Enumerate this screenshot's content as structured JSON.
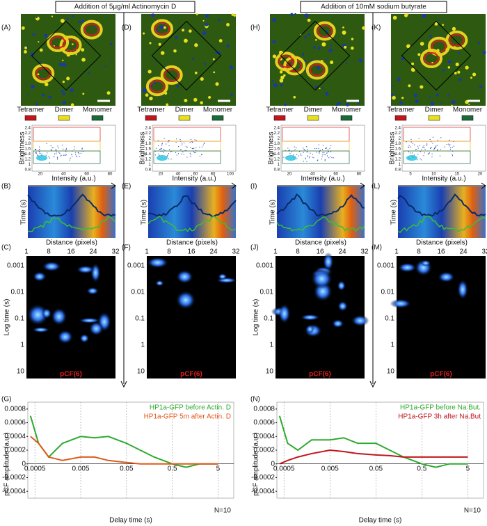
{
  "headers": [
    "Addition of 5μg/ml  Actinomycin D",
    "Addition of 10mM  sodium butyrate"
  ],
  "legend": [
    "Tetramer",
    "Dimer",
    "Monomer"
  ],
  "brightness_label": "Brightness",
  "brightness_yticks": [
    "2.4",
    "2.2",
    "2",
    "1.8",
    "1.6",
    "1.4",
    "1.2",
    "1",
    "0.8"
  ],
  "intensity_label": "Intensity (a.u.)",
  "time_label": "Time (s)",
  "distance_label": "Distance (pixels)",
  "distance_ticks": [
    "1",
    "8",
    "16",
    "24",
    "32"
  ],
  "logtime_label": "Log time (s)",
  "logtime_ticks": [
    "0.001",
    "0.01",
    "0.1",
    "1",
    "10"
  ],
  "pcf_label": "pCF(6)",
  "columns": [
    {
      "letters": [
        "(A)",
        "(B)",
        "(C)"
      ],
      "intensity_ticks": [
        "20",
        "40",
        "60",
        "80"
      ]
    },
    {
      "letters": [
        "(D)",
        "(E)",
        "(F)"
      ],
      "intensity_ticks": [
        "20",
        "40",
        "60",
        "80",
        "100"
      ]
    },
    {
      "letters": [
        "(H)",
        "(I)",
        "(J)"
      ],
      "intensity_ticks": [
        "20",
        "40",
        "60",
        "80"
      ]
    },
    {
      "letters": [
        "(K)",
        "(L)",
        "(M)"
      ],
      "intensity_ticks": [
        "5",
        "10",
        "15",
        "20"
      ]
    }
  ],
  "chart_data": [
    {
      "type": "line",
      "panel": "(G)",
      "xlabel": "Delay time (s)",
      "ylabel": "pCF amplitude (a.u.)",
      "annotation": "N=10",
      "log_x": true,
      "x": [
        0.0004,
        0.0006,
        0.001,
        0.002,
        0.005,
        0.01,
        0.02,
        0.05,
        0.1,
        0.2,
        0.5,
        1,
        2,
        5
      ],
      "series": [
        {
          "name": "HP1a-GFP before Actin. D",
          "color": "#2eaa2e",
          "values": [
            0.0007,
            0.0003,
            0.0001,
            0.0003,
            0.0004,
            0.00038,
            0.0004,
            0.0003,
            0.0002,
            0.0001,
            0,
            -5e-05,
            0,
            0
          ]
        },
        {
          "name": "HP1a-GFP 5m after Actin. D",
          "color": "#e0591a",
          "values": [
            0.0004,
            0.0003,
            0.0001,
            5e-05,
            0.0001,
            0.0001,
            5e-05,
            2e-05,
            0,
            0,
            0,
            0,
            0,
            0
          ]
        }
      ],
      "xlim": [
        0.00035,
        11
      ],
      "ylim": [
        -0.0005,
        0.0009
      ],
      "xticks": [
        0.0005,
        0.005,
        0.05,
        0.5,
        5
      ],
      "yticks": [
        0.0008,
        0.0006,
        0.0004,
        0.0002,
        0,
        -0.0002,
        -0.0004
      ]
    },
    {
      "type": "line",
      "panel": "(N)",
      "xlabel": "Delay time (s)",
      "ylabel": "pCF amplitude (a.u.)",
      "annotation": "N=10",
      "log_x": true,
      "x": [
        0.0004,
        0.0006,
        0.001,
        0.002,
        0.005,
        0.01,
        0.02,
        0.05,
        0.1,
        0.2,
        0.5,
        1,
        2,
        5
      ],
      "series": [
        {
          "name": "HP1a-GFP before Na But.",
          "color": "#2eaa2e",
          "values": [
            0.0007,
            0.0003,
            0.0002,
            0.00035,
            0.00035,
            0.00038,
            0.0003,
            0.0003,
            0.0002,
            0.0001,
            0,
            -5e-05,
            0,
            0
          ]
        },
        {
          "name": "HP1a-GFP 3h after Na.But",
          "color": "#c0161c",
          "values": [
            0,
            5e-05,
            0.0001,
            0.00015,
            0.0002,
            0.00018,
            0.00015,
            0.00013,
            0.00012,
            0.0001,
            0.0001,
            0.0001,
            0.0001,
            0.0001
          ]
        }
      ],
      "xlim": [
        0.00035,
        11
      ],
      "ylim": [
        -0.0005,
        0.0009
      ],
      "xticks": [
        0.0005,
        0.005,
        0.05,
        0.5,
        5
      ],
      "yticks": [
        0.0008,
        0.0006,
        0.0004,
        0.0002,
        0,
        -0.0002,
        -0.0004
      ]
    }
  ]
}
